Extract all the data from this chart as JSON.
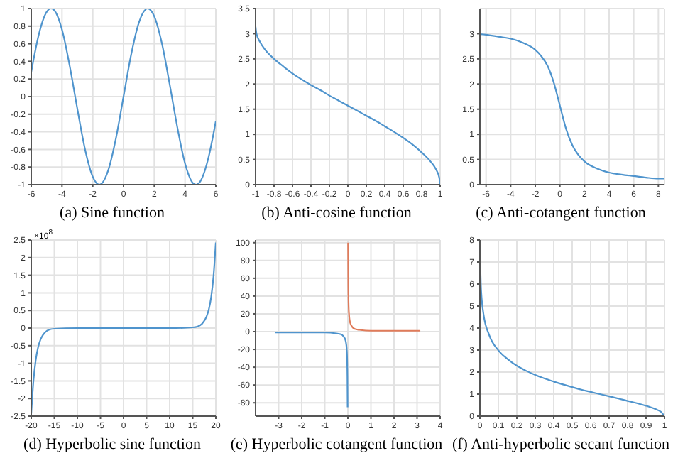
{
  "chart_data": [
    {
      "type": "line",
      "title": "(a) Sine function",
      "color": "#4f94cd",
      "grid": true,
      "xlim": [
        -6,
        6
      ],
      "ylim": [
        -1,
        1
      ],
      "xticks": [
        -6,
        -4,
        -2,
        0,
        2,
        4,
        6
      ],
      "yticks": [
        -1,
        -0.8,
        -0.6,
        -0.4,
        -0.2,
        0,
        0.2,
        0.4,
        0.6,
        0.8,
        1
      ],
      "x": [
        -6,
        -5.5,
        -5,
        -4.71,
        -4.5,
        -4,
        -3.5,
        -3,
        -2.5,
        -2,
        -1.57,
        -1,
        -0.5,
        0,
        0.5,
        1,
        1.57,
        2,
        2.5,
        3,
        3.5,
        4,
        4.5,
        4.71,
        5,
        5.5,
        6
      ],
      "values": [
        0.28,
        0.71,
        0.96,
        1,
        0.98,
        0.76,
        0.35,
        -0.14,
        -0.6,
        -0.91,
        -1,
        -0.84,
        -0.48,
        0,
        0.48,
        0.84,
        1,
        0.91,
        0.6,
        0.14,
        -0.35,
        -0.76,
        -0.98,
        -1,
        -0.96,
        -0.71,
        -0.28
      ]
    },
    {
      "type": "line",
      "title": "(b) Anti-cosine function",
      "color": "#4f94cd",
      "grid": true,
      "xlim": [
        -1,
        1
      ],
      "ylim": [
        0,
        3.5
      ],
      "xticks": [
        -1,
        -0.8,
        -0.6,
        -0.4,
        -0.2,
        0,
        0.2,
        0.4,
        0.6,
        0.8,
        1
      ],
      "yticks": [
        0,
        0.5,
        1,
        1.5,
        2,
        2.5,
        3,
        3.5
      ],
      "x": [
        -1,
        -0.99,
        -0.95,
        -0.9,
        -0.8,
        -0.7,
        -0.6,
        -0.5,
        -0.4,
        -0.3,
        -0.2,
        -0.1,
        0,
        0.1,
        0.2,
        0.3,
        0.4,
        0.5,
        0.6,
        0.7,
        0.8,
        0.9,
        0.95,
        0.99,
        1
      ],
      "values": [
        3.14,
        3.0,
        2.83,
        2.69,
        2.5,
        2.35,
        2.21,
        2.09,
        1.98,
        1.88,
        1.77,
        1.67,
        1.57,
        1.47,
        1.37,
        1.27,
        1.16,
        1.05,
        0.93,
        0.8,
        0.64,
        0.45,
        0.32,
        0.14,
        0
      ]
    },
    {
      "type": "line",
      "title": "(c) Anti-cotangent function",
      "color": "#4f94cd",
      "grid": true,
      "xlim": [
        -6.5,
        8.5
      ],
      "ylim": [
        0,
        3.5
      ],
      "xticks": [
        -6,
        -4,
        -2,
        0,
        2,
        4,
        6,
        8
      ],
      "yticks": [
        0,
        0.5,
        1,
        1.5,
        2,
        2.5,
        3
      ],
      "x": [
        -6.5,
        -6,
        -5,
        -4,
        -3,
        -2,
        -1.5,
        -1,
        -0.5,
        0,
        0.5,
        1,
        1.5,
        2,
        3,
        4,
        5,
        6,
        7,
        8,
        8.5
      ],
      "values": [
        2.99,
        2.98,
        2.94,
        2.9,
        2.82,
        2.68,
        2.55,
        2.36,
        2.03,
        1.57,
        1.11,
        0.79,
        0.59,
        0.46,
        0.32,
        0.24,
        0.2,
        0.17,
        0.14,
        0.12,
        0.12
      ]
    },
    {
      "type": "line",
      "title": "(d) Hyperbolic sine function",
      "color": "#4f94cd",
      "grid": true,
      "xlim": [
        -20,
        20
      ],
      "ylim": [
        -2.5,
        2.5
      ],
      "xticks": [
        -20,
        -15,
        -10,
        -5,
        0,
        5,
        10,
        15,
        20
      ],
      "yticks": [
        -2.5,
        -2,
        -1.5,
        -1,
        -0.5,
        0,
        0.5,
        1,
        1.5,
        2,
        2.5
      ],
      "annotations": [
        "×10$^{8}$"
      ],
      "x": [
        -20,
        -19.5,
        -19,
        -18.5,
        -18,
        -17,
        -16,
        -15,
        -10,
        0,
        10,
        15,
        16,
        17,
        18,
        18.5,
        19,
        19.5,
        20
      ],
      "values": [
        -2.43,
        -1.47,
        -0.89,
        -0.54,
        -0.33,
        -0.12,
        -0.04,
        -0.02,
        0,
        0,
        0,
        0.02,
        0.04,
        0.12,
        0.33,
        0.54,
        0.89,
        1.47,
        2.43
      ]
    },
    {
      "type": "line",
      "title": "(e) Hyperbolic cotangent function",
      "grid": true,
      "xlim": [
        -4,
        4
      ],
      "ylim": [
        -95,
        103
      ],
      "xticks": [
        -3,
        -2,
        -1,
        0,
        1,
        2,
        3,
        4
      ],
      "yticks": [
        -80,
        -60,
        -40,
        -20,
        0,
        20,
        40,
        60,
        80,
        100
      ],
      "series": [
        {
          "color": "#4f94cd",
          "x": [
            -3.14,
            -2,
            -1,
            -0.5,
            -0.3,
            -0.2,
            -0.1,
            -0.05,
            -0.03,
            -0.02,
            -0.0118
          ],
          "values": [
            -1,
            -1,
            -1,
            -2,
            -3,
            -5,
            -10,
            -20,
            -33,
            -50,
            -85
          ]
        },
        {
          "color": "#e07b5a",
          "x": [
            0.01,
            0.02,
            0.03,
            0.05,
            0.1,
            0.2,
            0.3,
            0.5,
            1,
            2,
            3.14
          ],
          "values": [
            100,
            50,
            33,
            20,
            10,
            5,
            3,
            2,
            1,
            1,
            1
          ]
        }
      ]
    },
    {
      "type": "line",
      "title": "(f) Anti-hyperbolic secant function",
      "color": "#4f94cd",
      "grid": true,
      "xlim": [
        0,
        1
      ],
      "ylim": [
        0,
        8
      ],
      "xticks": [
        0,
        0.1,
        0.2,
        0.3,
        0.4,
        0.5,
        0.6,
        0.7,
        0.8,
        0.9,
        1
      ],
      "yticks": [
        0,
        1,
        2,
        3,
        4,
        5,
        6,
        7,
        8
      ],
      "x": [
        0.002,
        0.005,
        0.01,
        0.02,
        0.05,
        0.1,
        0.15,
        0.2,
        0.25,
        0.3,
        0.35,
        0.4,
        0.45,
        0.5,
        0.55,
        0.6,
        0.65,
        0.7,
        0.75,
        0.8,
        0.85,
        0.9,
        0.95,
        0.98,
        1
      ],
      "values": [
        6.91,
        5.99,
        5.3,
        4.61,
        3.69,
        2.99,
        2.59,
        2.29,
        2.06,
        1.87,
        1.71,
        1.57,
        1.44,
        1.32,
        1.2,
        1.1,
        1.0,
        0.9,
        0.8,
        0.69,
        0.59,
        0.47,
        0.32,
        0.2,
        0
      ]
    }
  ]
}
